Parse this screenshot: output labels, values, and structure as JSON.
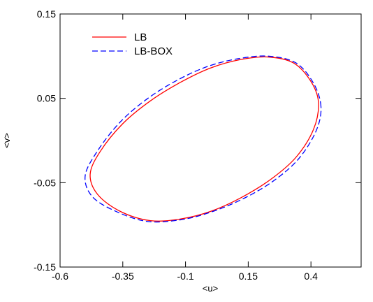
{
  "chart_data": {
    "type": "line",
    "xlabel": "<u>",
    "ylabel": "<v>",
    "xlim": [
      -0.6,
      0.6
    ],
    "ylim": [
      -0.15,
      0.15
    ],
    "x_ticks": [
      -0.6,
      -0.35,
      -0.1,
      0.15,
      0.4
    ],
    "x_tick_labels": [
      "-0.6",
      "-0.35",
      "-0.1",
      "0.15",
      "0.4"
    ],
    "y_ticks": [
      -0.15,
      -0.05,
      0.05,
      0.15
    ],
    "y_tick_labels": [
      "-0.15",
      "-0.05",
      "0.05",
      "0.15"
    ],
    "grid": false,
    "legend_position": "top-left",
    "series": [
      {
        "name": "LB",
        "color": "#ff0000",
        "style": "solid",
        "x": [
          0.43,
          0.4,
          0.33,
          0.23,
          0.12,
          0.0,
          -0.12,
          -0.24,
          -0.35,
          -0.44,
          -0.48,
          -0.45,
          -0.36,
          -0.24,
          -0.12,
          0.0,
          0.12,
          0.24,
          0.34,
          0.41,
          0.43
        ],
        "y": [
          0.045,
          0.07,
          0.092,
          0.099,
          0.096,
          0.086,
          0.069,
          0.047,
          0.02,
          -0.013,
          -0.04,
          -0.064,
          -0.084,
          -0.095,
          -0.093,
          -0.084,
          -0.068,
          -0.046,
          -0.02,
          0.013,
          0.045
        ]
      },
      {
        "name": "LB-BOX",
        "color": "#0000ff",
        "style": "dashed",
        "x": [
          0.44,
          0.41,
          0.34,
          0.23,
          0.11,
          -0.01,
          -0.13,
          -0.25,
          -0.36,
          -0.45,
          -0.5,
          -0.47,
          -0.37,
          -0.25,
          -0.12,
          0.0,
          0.13,
          0.25,
          0.35,
          0.42,
          0.44
        ],
        "y": [
          0.04,
          0.068,
          0.092,
          0.1,
          0.097,
          0.088,
          0.072,
          0.05,
          0.022,
          -0.012,
          -0.042,
          -0.067,
          -0.085,
          -0.096,
          -0.094,
          -0.085,
          -0.069,
          -0.048,
          -0.022,
          0.011,
          0.04
        ]
      }
    ]
  }
}
